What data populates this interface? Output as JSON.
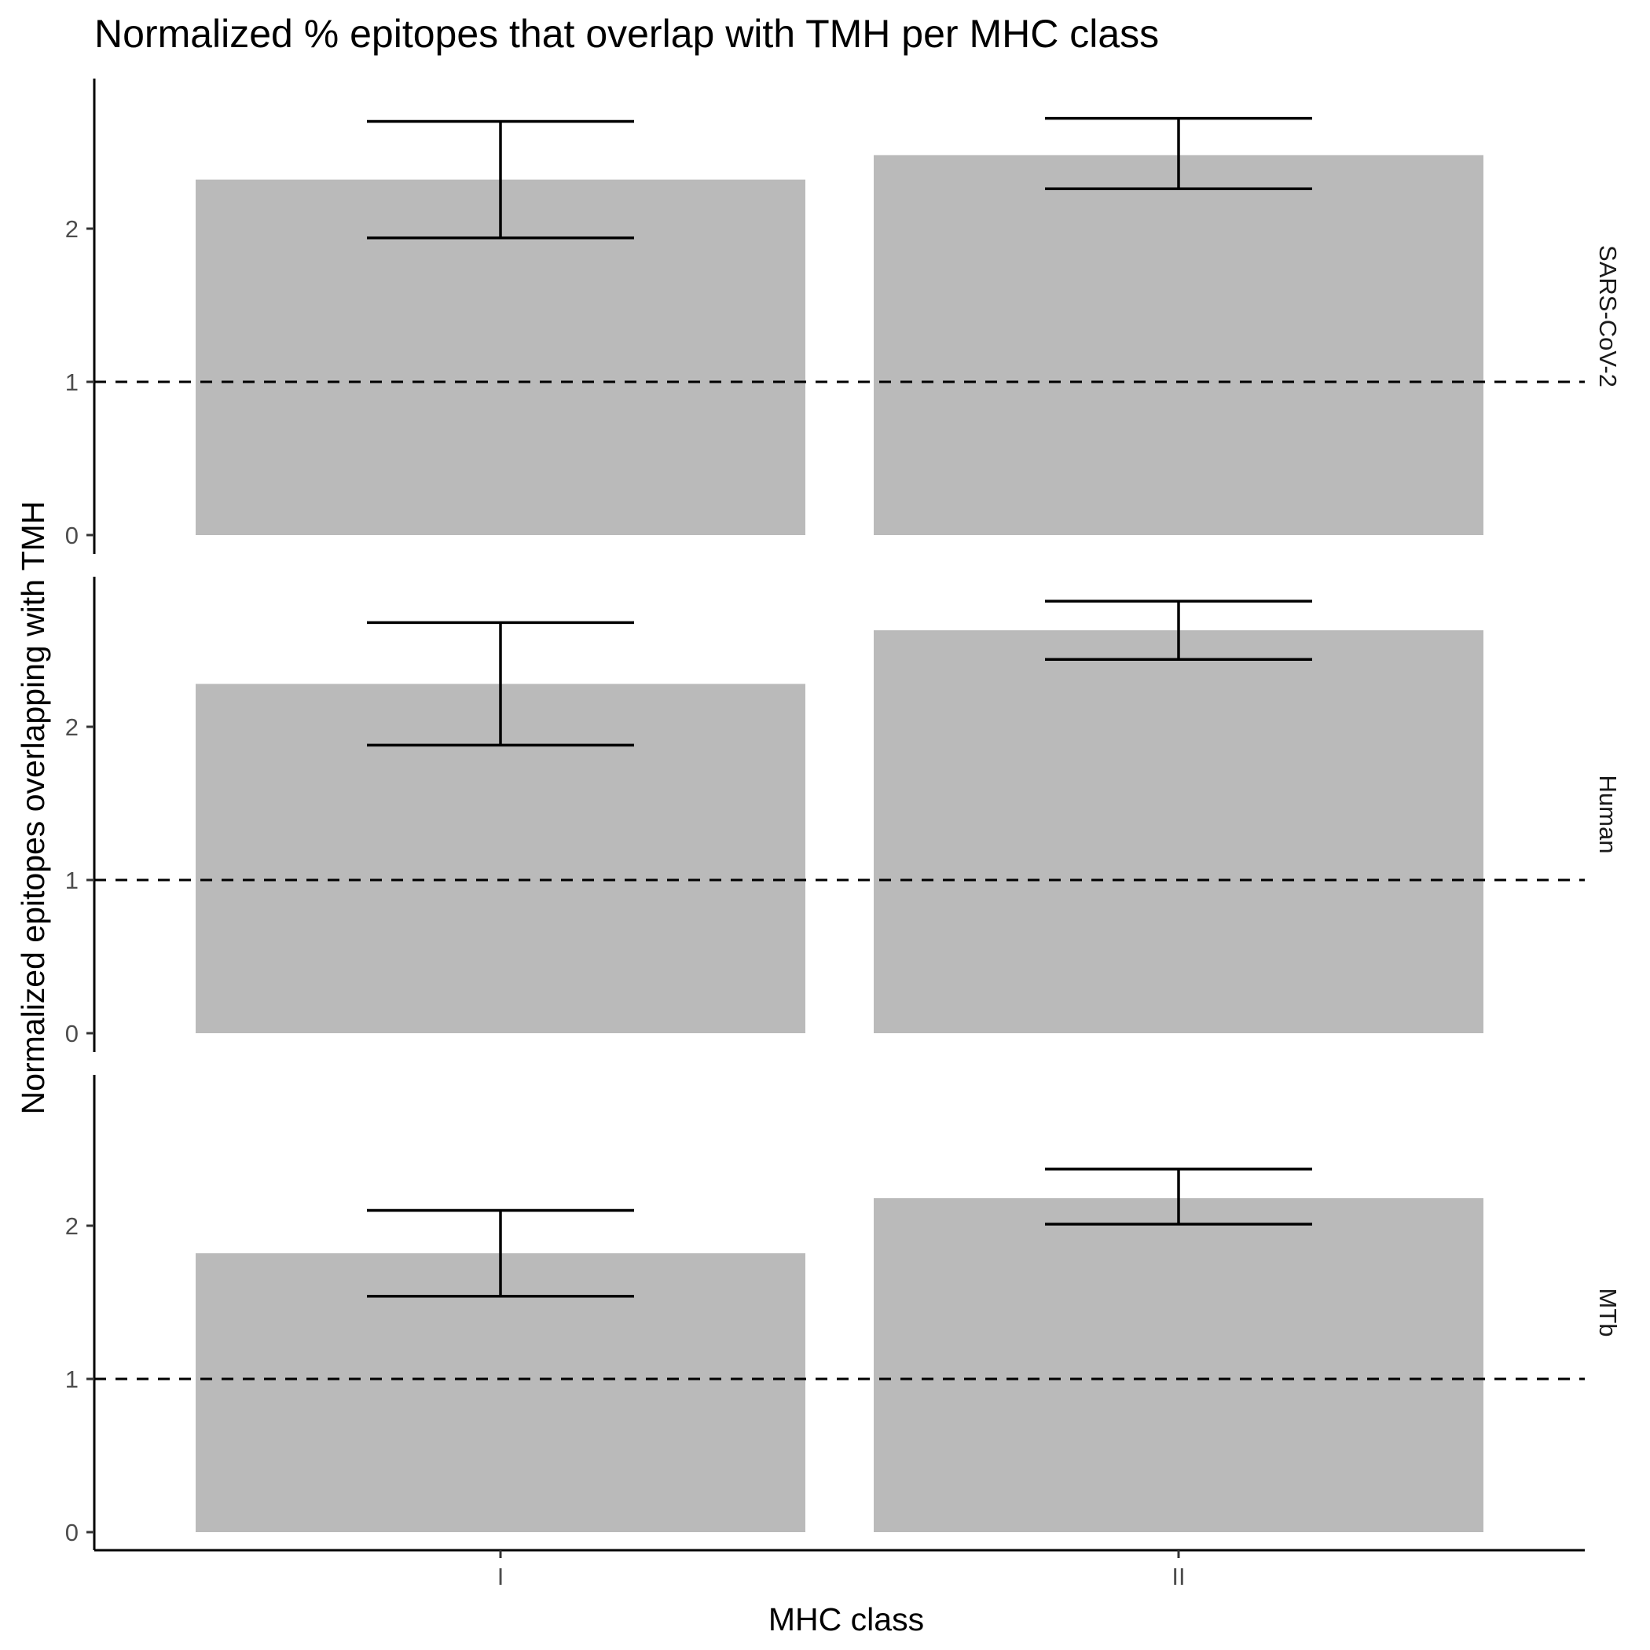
{
  "chart_data": {
    "type": "bar",
    "title": "Normalized % epitopes that overlap with TMH per MHC class",
    "xlabel": "MHC class",
    "ylabel": "Normalized epitopes overlapping with TMH",
    "categories": [
      "I",
      "II"
    ],
    "y_ticks": [
      "0",
      "1",
      "2"
    ],
    "ylim": [
      0,
      2.98
    ],
    "reference_line": 1,
    "reference_line_style": "dashed",
    "bar_color": "#bababa",
    "grid": false,
    "facets": [
      {
        "label": "SARS-CoV-2",
        "values": [
          2.32,
          2.48
        ],
        "error_low": [
          1.94,
          2.26
        ],
        "error_high": [
          2.7,
          2.72
        ]
      },
      {
        "label": "Human",
        "values": [
          2.28,
          2.63
        ],
        "error_low": [
          1.88,
          2.44
        ],
        "error_high": [
          2.68,
          2.82
        ]
      },
      {
        "label": "MTb",
        "values": [
          1.82,
          2.18
        ],
        "error_low": [
          1.54,
          2.01
        ],
        "error_high": [
          2.1,
          2.37
        ]
      }
    ]
  }
}
